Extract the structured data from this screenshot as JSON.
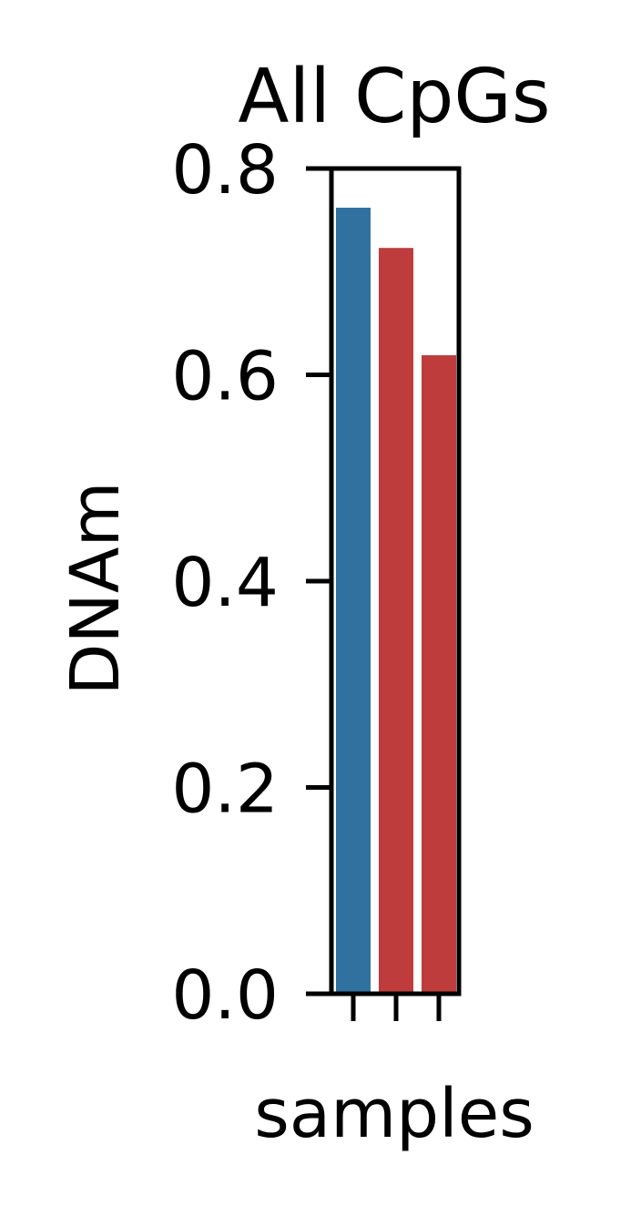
{
  "chart_data": {
    "type": "bar",
    "title": "All CpGs",
    "xlabel": "samples",
    "ylabel": "DNAm",
    "ylim": [
      0,
      0.8
    ],
    "yticks": [
      0.0,
      0.2,
      0.4,
      0.6,
      0.8
    ],
    "ytick_labels": [
      "0.0",
      "0.2",
      "0.4",
      "0.6",
      "0.8"
    ],
    "categories": [
      "",
      "",
      ""
    ],
    "values": [
      0.762,
      0.723,
      0.619
    ],
    "colors": [
      "#31719f",
      "#bf3c3d",
      "#bf3c3d"
    ],
    "grid": false,
    "legend": "none"
  }
}
